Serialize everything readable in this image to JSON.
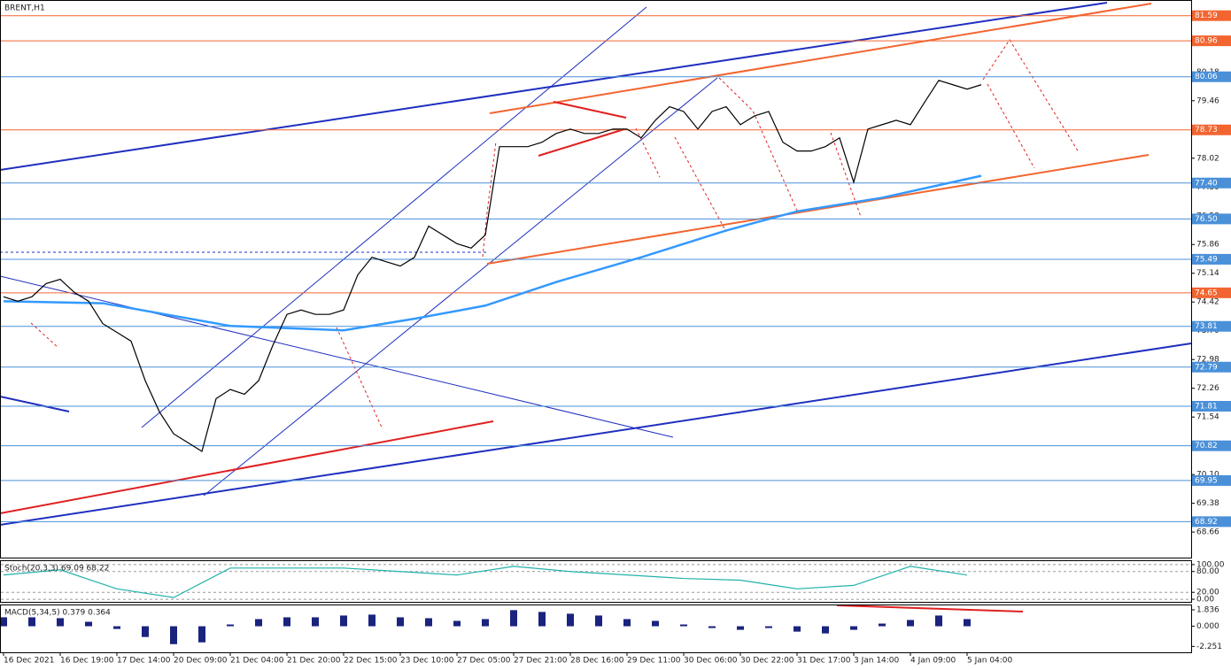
{
  "chart_data": [
    {
      "type": "line",
      "title": "BRENT,H1",
      "categories": [
        "16 Dec 2021",
        null,
        null,
        null,
        "16 Dec 19:00",
        null,
        null,
        null,
        "17 Dec 14:00",
        null,
        null,
        null,
        "20 Dec 09:00",
        null,
        null,
        null,
        "21 Dec 04:00",
        null,
        null,
        null,
        "21 Dec 20:00",
        null,
        null,
        null,
        "22 Dec 15:00",
        null,
        null,
        null,
        "23 Dec 10:00",
        null,
        null,
        null,
        "27 Dec 05:00",
        null,
        null,
        null,
        "27 Dec 21:00",
        null,
        null,
        null,
        "28 Dec 16:00",
        null,
        null,
        null,
        "29 Dec 11:00",
        null,
        null,
        null,
        "30 Dec 06:00",
        null,
        null,
        null,
        "30 Dec 22:00",
        null,
        null,
        null,
        "31 Dec 17:00",
        null,
        null,
        null,
        "3 Jan 14:00",
        null,
        null,
        null,
        "4 Jan 09:00",
        null,
        null,
        null,
        "5 Jan 04:00",
        null
      ],
      "values": [
        74.55,
        74.44,
        74.55,
        74.88,
        74.99,
        74.66,
        74.44,
        73.88,
        73.66,
        73.44,
        72.45,
        71.67,
        71.12,
        70.9,
        70.68,
        72.0,
        72.23,
        72.11,
        72.45,
        73.33,
        74.11,
        74.22,
        74.11,
        74.11,
        74.22,
        75.1,
        75.54,
        75.43,
        75.32,
        75.54,
        76.32,
        76.1,
        75.88,
        75.77,
        76.1,
        78.31,
        78.31,
        78.31,
        78.42,
        78.64,
        78.75,
        78.64,
        78.64,
        78.75,
        78.75,
        78.53,
        78.97,
        79.31,
        79.19,
        78.75,
        79.19,
        79.31,
        78.86,
        79.08,
        79.19,
        78.42,
        78.2,
        78.2,
        78.31,
        78.53,
        77.42,
        78.75,
        78.86,
        78.97,
        78.86,
        79.42,
        79.97,
        79.86,
        79.75,
        79.86
      ],
      "color": "#000000",
      "ma_x": [
        0,
        7,
        16,
        24,
        29,
        34,
        39,
        45,
        51,
        56,
        62,
        69
      ],
      "ma_values": [
        74.44,
        74.39,
        73.82,
        73.71,
        74.0,
        74.33,
        74.92,
        75.54,
        76.21,
        76.69,
        77.03,
        77.58
      ],
      "ma_color": "#3399ff",
      "ylim": [
        68.02,
        81.96
      ],
      "yticks": [
        80.18,
        79.46,
        78.74,
        78.02,
        {
          "value": 77.3,
          "label": "77.30"
        },
        76.58,
        75.86,
        75.14,
        74.42,
        {
          "value": 73.7,
          "label": "73.70"
        },
        72.98,
        72.26,
        71.54,
        70.82,
        {
          "value": 70.1,
          "label": "70.10"
        },
        69.38,
        68.66
      ],
      "levels": [
        {
          "value": 81.59,
          "color": "#f26530"
        },
        {
          "value": 80.96,
          "color": "#f26530"
        },
        {
          "value": 80.06,
          "color": "#4a90d9"
        },
        {
          "value": 78.73,
          "color": "#f26530"
        },
        {
          "value": 77.4,
          "label": "77.40",
          "color": "#4a90d9"
        },
        {
          "value": 76.5,
          "label": "76.50",
          "color": "#4a90d9"
        },
        {
          "value": 75.49,
          "color": "#4a90d9"
        },
        {
          "value": 74.65,
          "color": "#f26530"
        },
        {
          "value": 73.81,
          "color": "#4a90d9"
        },
        {
          "value": 72.79,
          "color": "#4a90d9"
        },
        {
          "value": 71.81,
          "color": "#4a90d9"
        },
        {
          "value": 70.82,
          "color": "#4a90d9"
        },
        {
          "value": 69.95,
          "color": "#4a90d9"
        },
        {
          "value": 68.92,
          "color": "#4a90d9"
        }
      ]
    },
    {
      "type": "line",
      "title": "Stoch(20,3,3) 69.09 68.22",
      "x": [
        0,
        4,
        8,
        12,
        16,
        20,
        24,
        28,
        32,
        36,
        40,
        44,
        48,
        52,
        56,
        60,
        64,
        68
      ],
      "values": [
        70,
        85,
        30,
        5,
        90,
        90,
        90,
        80,
        70,
        95,
        80,
        70,
        60,
        55,
        30,
        40,
        95,
        70
      ],
      "color": "#20b2aa",
      "ylim": [
        -7.5,
        110
      ],
      "yticks": [
        {
          "value": 100,
          "label": "100.00"
        },
        {
          "value": 80,
          "label": "80.00"
        },
        {
          "value": 20,
          "label": "20.00"
        },
        {
          "value": 0,
          "label": "0.00"
        }
      ],
      "grid": true
    },
    {
      "type": "bar",
      "title": "MACD(5,34,5) 0.379 0.364",
      "x": [
        0,
        2,
        4,
        6,
        8,
        10,
        12,
        14,
        16,
        18,
        20,
        22,
        24,
        26,
        28,
        30,
        32,
        34,
        36,
        38,
        40,
        42,
        44,
        46,
        48,
        50,
        52,
        54,
        56,
        58,
        60,
        62,
        64,
        66,
        68
      ],
      "values": [
        1.0,
        1.0,
        0.9,
        0.5,
        -0.3,
        -1.2,
        -2.0,
        -1.8,
        0.2,
        0.8,
        1.0,
        1.0,
        1.2,
        1.3,
        1.0,
        0.9,
        0.6,
        0.8,
        1.8,
        1.6,
        1.4,
        1.2,
        0.8,
        0.6,
        0.2,
        -0.2,
        -0.4,
        -0.2,
        -0.6,
        -0.8,
        -0.4,
        0.3,
        0.7,
        1.2,
        0.8
      ],
      "color": "#1a237e",
      "ylim": [
        -2.91,
        2.33
      ],
      "yticks": [
        1.836,
        {
          "value": 0,
          "label": "0.000"
        },
        -2.251
      ]
    }
  ]
}
